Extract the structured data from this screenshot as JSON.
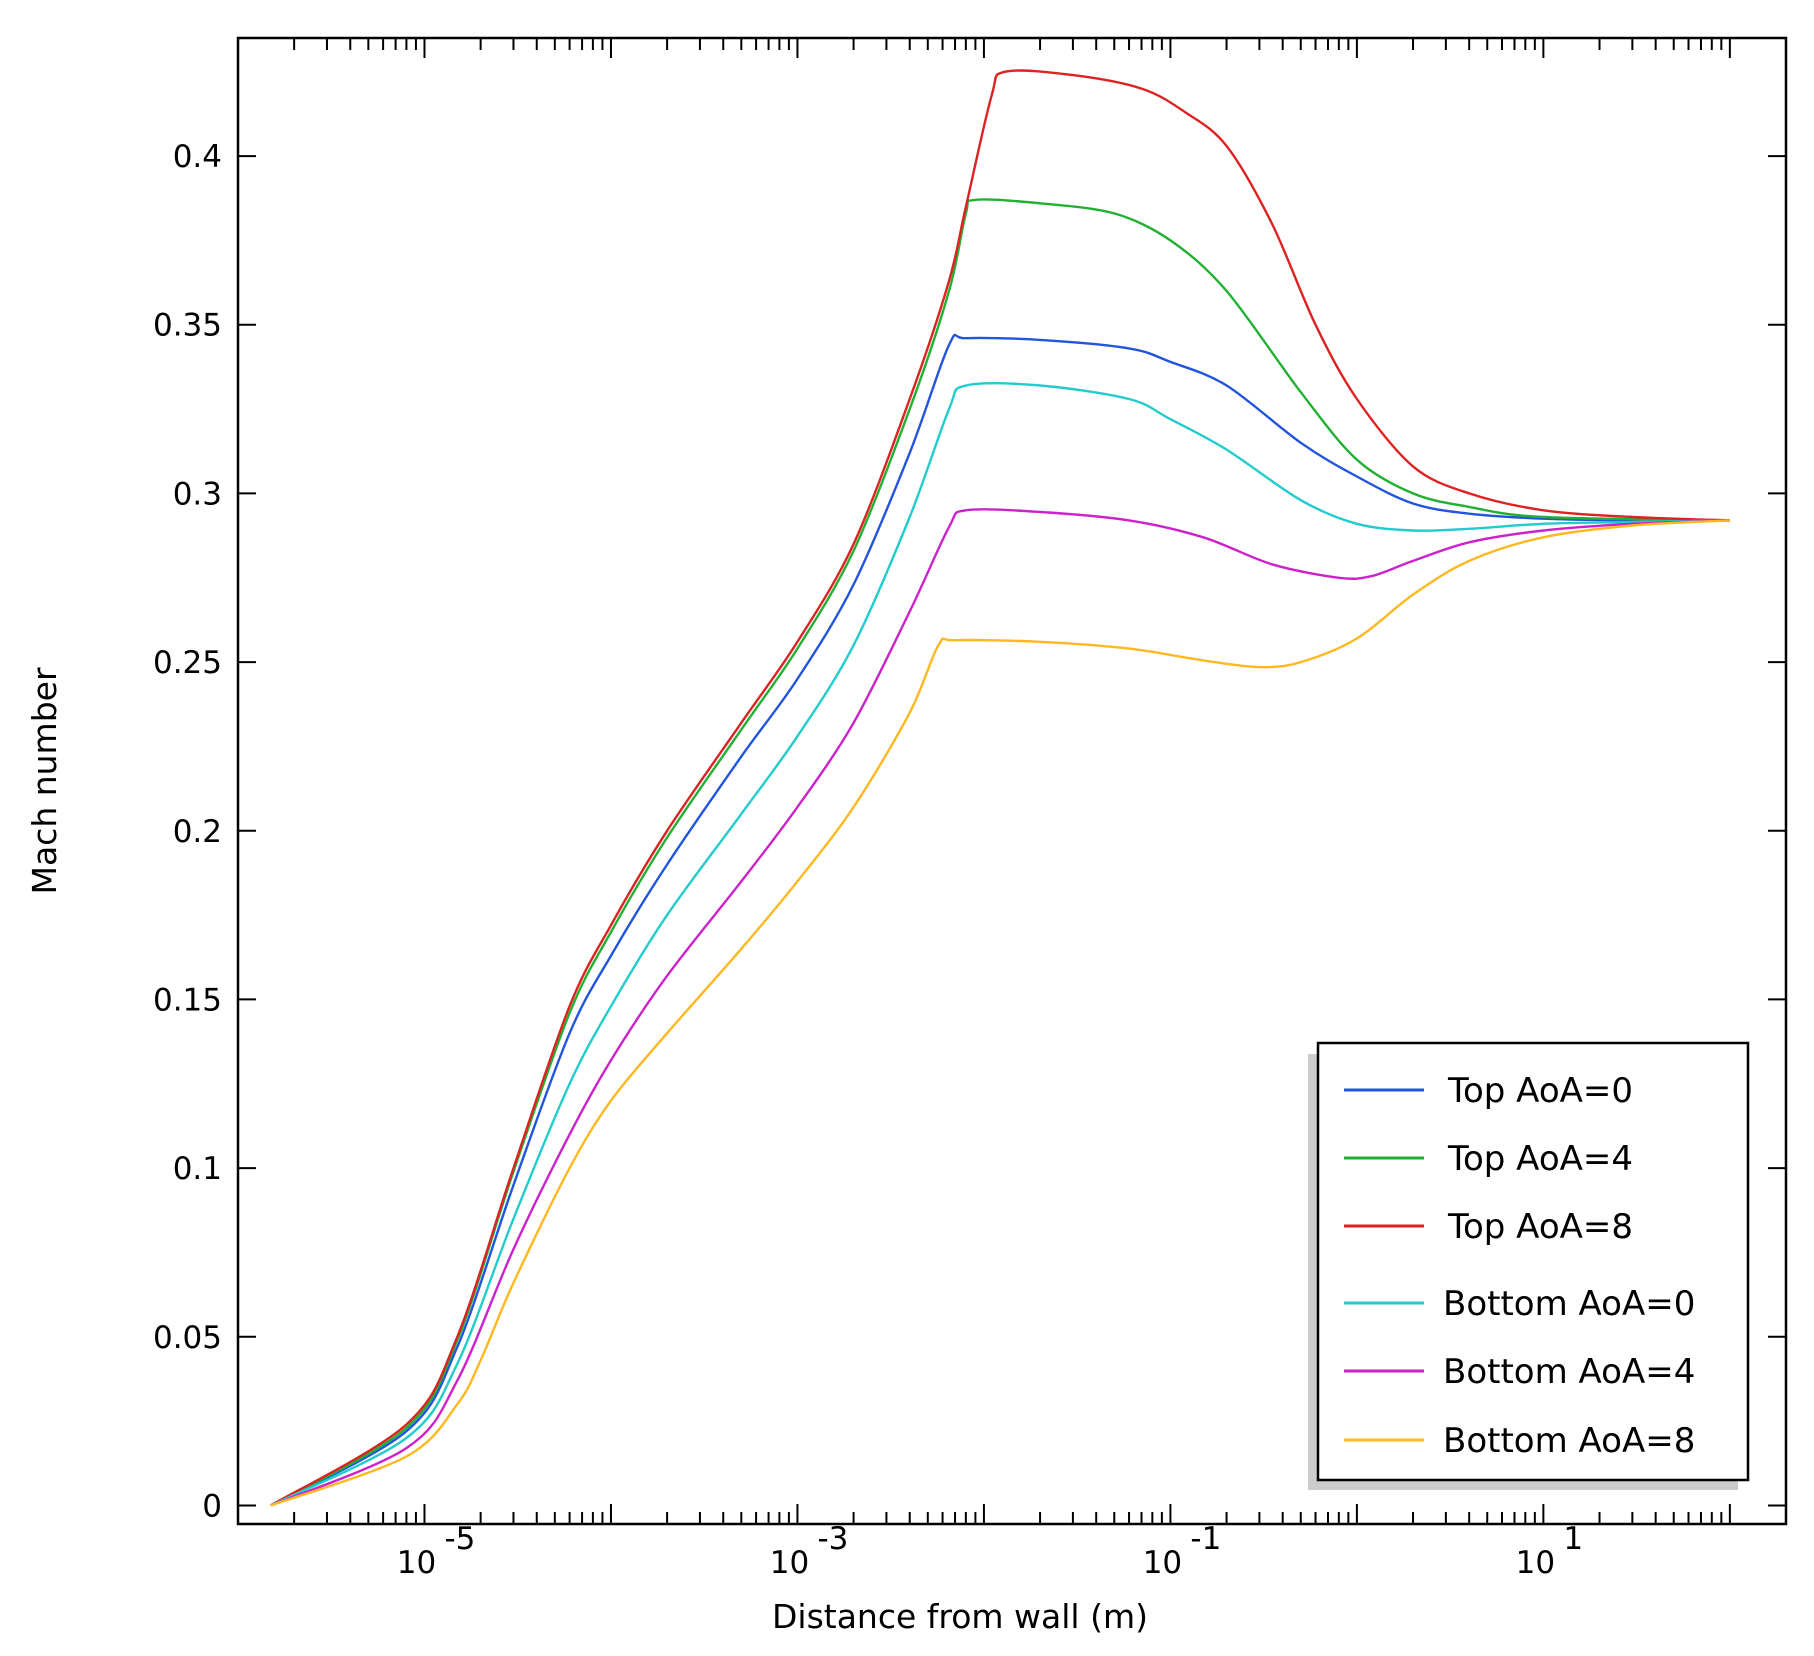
{
  "chart_data": {
    "type": "line",
    "title": "",
    "xlabel": "Distance from wall (m)",
    "ylabel": "Mach number",
    "x_scale": "log",
    "xlim": [
      1e-06,
      200
    ],
    "ylim": [
      -0.0055,
      0.435
    ],
    "x_ticks": [
      {
        "label": "10",
        "exp": "-5",
        "value": 1e-05
      },
      {
        "label": "10",
        "exp": "-3",
        "value": 0.001
      },
      {
        "label": "10",
        "exp": "-1",
        "value": 0.1
      },
      {
        "label": "10",
        "exp": "1",
        "value": 10
      }
    ],
    "y_ticks": [
      {
        "label": "0",
        "value": 0
      },
      {
        "label": "0.05",
        "value": 0.05
      },
      {
        "label": "0.1",
        "value": 0.1
      },
      {
        "label": "0.15",
        "value": 0.15
      },
      {
        "label": "0.2",
        "value": 0.2
      },
      {
        "label": "0.25",
        "value": 0.25
      },
      {
        "label": "0.3",
        "value": 0.3
      },
      {
        "label": "0.35",
        "value": 0.35
      },
      {
        "label": "0.4",
        "value": 0.4
      }
    ],
    "grid": false,
    "legend_position": "bottom-right",
    "series": [
      {
        "name": "Top AoA=0",
        "color": "#2255dd",
        "points": [
          [
            1.5e-06,
            0
          ],
          [
            8e-06,
            0.022
          ],
          [
            1.5e-05,
            0.047
          ],
          [
            3e-05,
            0.095
          ],
          [
            6e-05,
            0.14
          ],
          [
            0.0001,
            0.163
          ],
          [
            0.0002,
            0.19
          ],
          [
            0.0005,
            0.222
          ],
          [
            0.001,
            0.245
          ],
          [
            0.002,
            0.273
          ],
          [
            0.004,
            0.312
          ],
          [
            0.0065,
            0.344
          ],
          [
            0.008,
            0.346
          ],
          [
            0.02,
            0.3455
          ],
          [
            0.06,
            0.343
          ],
          [
            0.1,
            0.339
          ],
          [
            0.2,
            0.332
          ],
          [
            0.5,
            0.315
          ],
          [
            1,
            0.305
          ],
          [
            2,
            0.297
          ],
          [
            4,
            0.294
          ],
          [
            10,
            0.2925
          ],
          [
            30,
            0.292
          ],
          [
            100,
            0.292
          ]
        ]
      },
      {
        "name": "Top AoA=4",
        "color": "#22b033",
        "points": [
          [
            1.5e-06,
            0
          ],
          [
            8e-06,
            0.023
          ],
          [
            1.5e-05,
            0.049
          ],
          [
            3e-05,
            0.099
          ],
          [
            6e-05,
            0.146
          ],
          [
            0.0001,
            0.17
          ],
          [
            0.0002,
            0.198
          ],
          [
            0.0005,
            0.23
          ],
          [
            0.001,
            0.254
          ],
          [
            0.002,
            0.283
          ],
          [
            0.004,
            0.325
          ],
          [
            0.0065,
            0.36
          ],
          [
            0.008,
            0.383
          ],
          [
            0.009,
            0.387
          ],
          [
            0.02,
            0.386
          ],
          [
            0.05,
            0.383
          ],
          [
            0.1,
            0.375
          ],
          [
            0.2,
            0.36
          ],
          [
            0.5,
            0.33
          ],
          [
            1,
            0.31
          ],
          [
            2,
            0.3
          ],
          [
            4,
            0.296
          ],
          [
            10,
            0.293
          ],
          [
            100,
            0.292
          ]
        ]
      },
      {
        "name": "Top AoA=8",
        "color": "#dd2222",
        "points": [
          [
            1.5e-06,
            0
          ],
          [
            8e-06,
            0.024
          ],
          [
            1.5e-05,
            0.05
          ],
          [
            3e-05,
            0.1
          ],
          [
            6e-05,
            0.148
          ],
          [
            0.0001,
            0.172
          ],
          [
            0.0002,
            0.2
          ],
          [
            0.0005,
            0.232
          ],
          [
            0.001,
            0.256
          ],
          [
            0.002,
            0.285
          ],
          [
            0.004,
            0.328
          ],
          [
            0.0065,
            0.363
          ],
          [
            0.008,
            0.385
          ],
          [
            0.011,
            0.418
          ],
          [
            0.013,
            0.425
          ],
          [
            0.03,
            0.424
          ],
          [
            0.07,
            0.42
          ],
          [
            0.12,
            0.413
          ],
          [
            0.2,
            0.403
          ],
          [
            0.35,
            0.38
          ],
          [
            0.6,
            0.35
          ],
          [
            1,
            0.328
          ],
          [
            2,
            0.308
          ],
          [
            4,
            0.3
          ],
          [
            10,
            0.295
          ],
          [
            30,
            0.293
          ],
          [
            100,
            0.292
          ]
        ]
      },
      {
        "name": "Bottom AoA=0",
        "color": "#22cccc",
        "points": [
          [
            1.5e-06,
            0
          ],
          [
            8e-06,
            0.02
          ],
          [
            1.5e-05,
            0.042
          ],
          [
            3e-05,
            0.085
          ],
          [
            6e-05,
            0.125
          ],
          [
            0.0001,
            0.148
          ],
          [
            0.0002,
            0.175
          ],
          [
            0.0005,
            0.205
          ],
          [
            0.001,
            0.228
          ],
          [
            0.002,
            0.255
          ],
          [
            0.004,
            0.293
          ],
          [
            0.0065,
            0.325
          ],
          [
            0.008,
            0.332
          ],
          [
            0.02,
            0.332
          ],
          [
            0.06,
            0.328
          ],
          [
            0.1,
            0.322
          ],
          [
            0.2,
            0.313
          ],
          [
            0.5,
            0.298
          ],
          [
            1,
            0.291
          ],
          [
            2,
            0.289
          ],
          [
            4,
            0.2895
          ],
          [
            10,
            0.291
          ],
          [
            30,
            0.2915
          ],
          [
            100,
            0.292
          ]
        ]
      },
      {
        "name": "Bottom AoA=4",
        "color": "#cc22cc",
        "points": [
          [
            1.5e-06,
            0
          ],
          [
            8e-06,
            0.017
          ],
          [
            1.5e-05,
            0.037
          ],
          [
            3e-05,
            0.076
          ],
          [
            6e-05,
            0.11
          ],
          [
            0.0001,
            0.132
          ],
          [
            0.0002,
            0.157
          ],
          [
            0.0005,
            0.185
          ],
          [
            0.001,
            0.207
          ],
          [
            0.002,
            0.232
          ],
          [
            0.004,
            0.265
          ],
          [
            0.0065,
            0.29
          ],
          [
            0.008,
            0.295
          ],
          [
            0.02,
            0.2945
          ],
          [
            0.06,
            0.292
          ],
          [
            0.15,
            0.287
          ],
          [
            0.35,
            0.279
          ],
          [
            0.8,
            0.275
          ],
          [
            1.2,
            0.2755
          ],
          [
            2,
            0.28
          ],
          [
            4,
            0.2855
          ],
          [
            10,
            0.289
          ],
          [
            30,
            0.291
          ],
          [
            100,
            0.292
          ]
        ]
      },
      {
        "name": "Bottom AoA=8",
        "color": "#ffb820",
        "points": [
          [
            1.5e-06,
            0
          ],
          [
            8e-06,
            0.0145
          ],
          [
            1.5e-05,
            0.03
          ],
          [
            2e-05,
            0.043
          ],
          [
            3e-05,
            0.066
          ],
          [
            6e-05,
            0.1
          ],
          [
            0.0001,
            0.12
          ],
          [
            0.0002,
            0.14
          ],
          [
            0.0005,
            0.165
          ],
          [
            0.001,
            0.185
          ],
          [
            0.002,
            0.207
          ],
          [
            0.004,
            0.235
          ],
          [
            0.0057,
            0.255
          ],
          [
            0.007,
            0.2565
          ],
          [
            0.02,
            0.256
          ],
          [
            0.06,
            0.254
          ],
          [
            0.15,
            0.2505
          ],
          [
            0.3,
            0.2485
          ],
          [
            0.5,
            0.25
          ],
          [
            1,
            0.257
          ],
          [
            2,
            0.27
          ],
          [
            4,
            0.28
          ],
          [
            10,
            0.287
          ],
          [
            30,
            0.2905
          ],
          [
            100,
            0.292
          ]
        ]
      }
    ]
  }
}
